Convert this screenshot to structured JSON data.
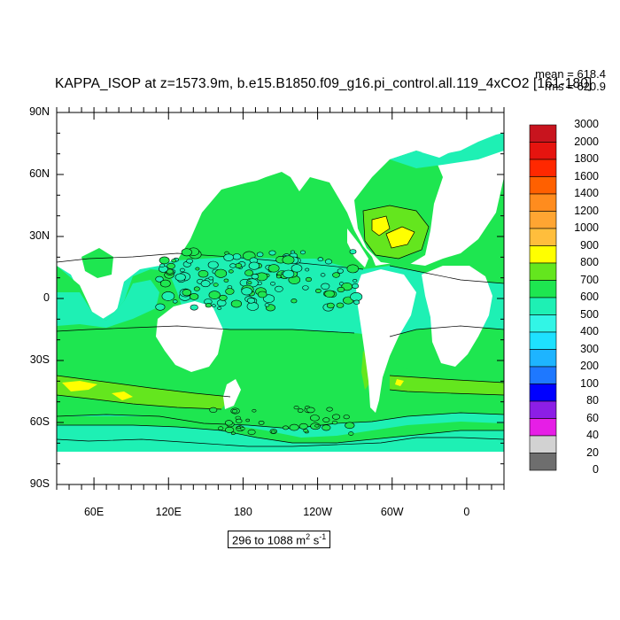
{
  "chart_data": {
    "type": "heatmap",
    "title": "KAPPA_ISOP at z=1573.9m, b.e15.B1850.f09_g16.pi_control.all.119_4xCO2 [161-180]",
    "stats": {
      "mean": "mean = 618.4",
      "rms": "rms = 620.9"
    },
    "range_label": "296 to 1088 m",
    "range_unit_exp": "2",
    "range_suffix": " s",
    "range_suffix_exp": "-1",
    "x_ticks": [
      "60E",
      "120E",
      "180",
      "120W",
      "60W",
      "0"
    ],
    "y_ticks": [
      "90N",
      "60N",
      "30N",
      "0",
      "30S",
      "60S",
      "90S"
    ],
    "lon_range": [
      30,
      390
    ],
    "lat_range": [
      -90,
      90
    ],
    "colorbar": {
      "levels": [
        "3000",
        "2000",
        "1800",
        "1600",
        "1400",
        "1200",
        "1000",
        "900",
        "800",
        "700",
        "600",
        "500",
        "400",
        "300",
        "200",
        "100",
        "80",
        "60",
        "40",
        "20",
        "0"
      ],
      "colors": [
        "#c8141e",
        "#e6140f",
        "#ff2800",
        "#ff6000",
        "#ff8c1e",
        "#ffa532",
        "#ffbe3c",
        "#ffff00",
        "#64e61e",
        "#1ee650",
        "#1ef0b4",
        "#32f5e6",
        "#1ee1ff",
        "#1eb4ff",
        "#1e78ff",
        "#0000ff",
        "#8c1ee6",
        "#e61ee6",
        "#d2d2d2",
        "#6e6e6e"
      ]
    },
    "regions": [
      {
        "name": "background-ocean",
        "value_class": "600-700",
        "color": "#1ee650"
      },
      {
        "name": "tropical-band",
        "value_class": "500-600",
        "color": "#1ef0b4"
      },
      {
        "name": "southern-ocean",
        "value_class": "500-600",
        "color": "#1ef0b4"
      },
      {
        "name": "north-atlantic-gyre",
        "value_class": "800-900",
        "color": "#ffff00"
      },
      {
        "name": "antarctic-circumpolar-band",
        "value_class": "700-800",
        "color": "#64e61e"
      }
    ]
  }
}
